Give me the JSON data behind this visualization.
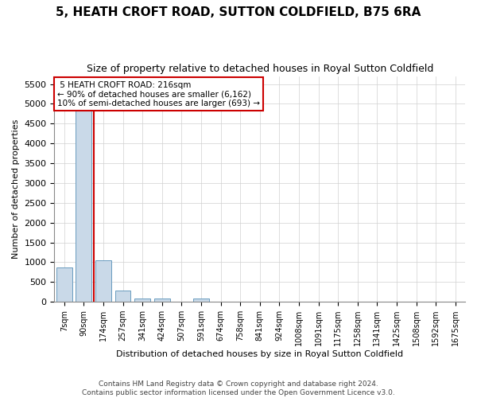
{
  "title": "5, HEATH CROFT ROAD, SUTTON COLDFIELD, B75 6RA",
  "subtitle": "Size of property relative to detached houses in Royal Sutton Coldfield",
  "xlabel": "Distribution of detached houses by size in Royal Sutton Coldfield",
  "ylabel": "Number of detached properties",
  "footer_line1": "Contains HM Land Registry data © Crown copyright and database right 2024.",
  "footer_line2": "Contains public sector information licensed under the Open Government Licence v3.0.",
  "bar_labels": [
    "7sqm",
    "90sqm",
    "174sqm",
    "257sqm",
    "341sqm",
    "424sqm",
    "507sqm",
    "591sqm",
    "674sqm",
    "758sqm",
    "841sqm",
    "924sqm",
    "1008sqm",
    "1091sqm",
    "1175sqm",
    "1258sqm",
    "1341sqm",
    "1425sqm",
    "1508sqm",
    "1592sqm",
    "1675sqm"
  ],
  "bar_values": [
    870,
    5500,
    1050,
    290,
    90,
    80,
    0,
    75,
    0,
    0,
    0,
    0,
    0,
    0,
    0,
    0,
    0,
    0,
    0,
    0,
    0
  ],
  "bar_color": "#c9d9e8",
  "bar_edge_color": "#6a9cbf",
  "ylim_max": 5700,
  "yticks": [
    0,
    500,
    1000,
    1500,
    2000,
    2500,
    3000,
    3500,
    4000,
    4500,
    5000,
    5500
  ],
  "annotation_line1": "5 HEATH CROFT ROAD: 216sqm",
  "annotation_line2": "← 90% of detached houses are smaller (6,162)",
  "annotation_line3": "10% of semi-detached houses are larger (693) →",
  "vline_color": "#cc0000",
  "annotation_box_color": "#cc0000",
  "background_color": "#ffffff",
  "grid_color": "#d0d0d0",
  "vline_x": 1.5
}
